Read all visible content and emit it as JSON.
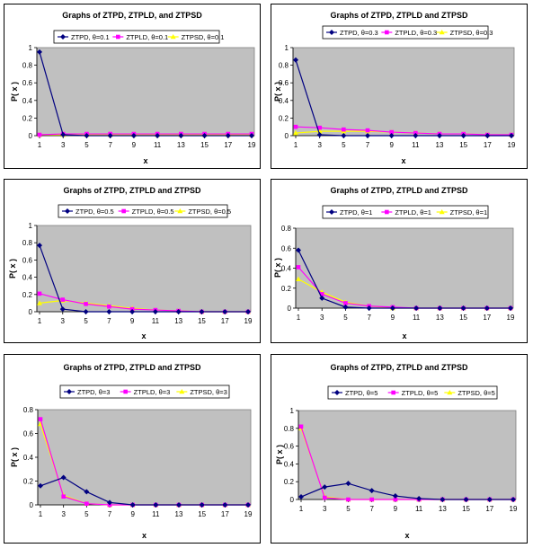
{
  "chart_data": [
    {
      "type": "line",
      "title": "Graphs of ZTPD, ZTPLD, and ZTPSD",
      "xlabel": "x",
      "ylabel": "P( x )",
      "categories": [
        "1",
        "3",
        "5",
        "7",
        "9",
        "11",
        "13",
        "15",
        "17",
        "19"
      ],
      "ylim": [
        0,
        1
      ],
      "yticks": [
        "0",
        "0.2",
        "0.4",
        "0.6",
        "0.8",
        "1"
      ],
      "legend": [
        "ZTPD, θ=0.1",
        "ZTPLD, θ=0.1",
        "ZTPSD, θ=0.1"
      ],
      "series": [
        {
          "name": "ZTPD, θ=0.1",
          "values": [
            0.95,
            0.01,
            0.0,
            0.0,
            0.0,
            0.0,
            0.0,
            0.0,
            0.0,
            0.0
          ]
        },
        {
          "name": "ZTPLD, θ=0.1",
          "values": [
            0.01,
            0.02,
            0.02,
            0.02,
            0.02,
            0.02,
            0.02,
            0.02,
            0.02,
            0.02
          ]
        },
        {
          "name": "ZTPSD, θ=0.1",
          "values": [
            0.01,
            0.01,
            0.01,
            0.01,
            0.01,
            0.01,
            0.01,
            0.01,
            0.01,
            0.01
          ]
        }
      ]
    },
    {
      "type": "line",
      "title": "Graphs of ZTPD, ZTPLD and ZTPSD",
      "xlabel": "x",
      "ylabel": "P( x )",
      "categories": [
        "1",
        "3",
        "5",
        "7",
        "9",
        "11",
        "13",
        "15",
        "17",
        "19"
      ],
      "ylim": [
        0,
        1
      ],
      "yticks": [
        "0",
        "0.2",
        "0.4",
        "0.6",
        "0.8",
        "1"
      ],
      "legend": [
        "ZTPD, θ=0.3",
        "ZTPLD, θ=0.3",
        "ZTPSD, θ=0.3"
      ],
      "series": [
        {
          "name": "ZTPD, θ=0.3",
          "values": [
            0.86,
            0.01,
            0.0,
            0.0,
            0.0,
            0.0,
            0.0,
            0.0,
            0.0,
            0.0
          ]
        },
        {
          "name": "ZTPLD, θ=0.3",
          "values": [
            0.1,
            0.09,
            0.07,
            0.06,
            0.04,
            0.03,
            0.02,
            0.02,
            0.01,
            0.01
          ]
        },
        {
          "name": "ZTPSD, θ=0.3",
          "values": [
            0.03,
            0.05,
            0.05,
            0.05,
            0.04,
            0.03,
            0.02,
            0.02,
            0.01,
            0.01
          ]
        }
      ]
    },
    {
      "type": "line",
      "title": "Graphs of ZTPD, ZTPLD and ZTPSD",
      "xlabel": "x",
      "ylabel": "P( x )",
      "categories": [
        "1",
        "3",
        "5",
        "7",
        "9",
        "11",
        "13",
        "15",
        "17",
        "19"
      ],
      "ylim": [
        0,
        1
      ],
      "yticks": [
        "0",
        "0.2",
        "0.4",
        "0.6",
        "0.8",
        "1"
      ],
      "legend": [
        "ZTPD, θ=0.5",
        "ZTPLD, θ=0.5",
        "ZTPSD, θ=0.5"
      ],
      "series": [
        {
          "name": "ZTPD, θ=0.5",
          "values": [
            0.77,
            0.03,
            0.0,
            0.0,
            0.0,
            0.0,
            0.0,
            0.0,
            0.0,
            0.0
          ]
        },
        {
          "name": "ZTPLD, θ=0.5",
          "values": [
            0.21,
            0.14,
            0.09,
            0.06,
            0.03,
            0.02,
            0.01,
            0.0,
            0.0,
            0.0
          ]
        },
        {
          "name": "ZTPSD, θ=0.5",
          "values": [
            0.1,
            0.13,
            0.1,
            0.07,
            0.04,
            0.02,
            0.01,
            0.0,
            0.0,
            0.0
          ]
        }
      ]
    },
    {
      "type": "line",
      "title": "Graphs of ZTPD, ZTPLD and ZTPSD",
      "xlabel": "x",
      "ylabel": "P( x )",
      "categories": [
        "1",
        "3",
        "5",
        "7",
        "9",
        "11",
        "13",
        "15",
        "17",
        "19"
      ],
      "ylim": [
        0,
        0.8
      ],
      "yticks": [
        "0",
        "0.2",
        "0.4",
        "0.6",
        "0.8"
      ],
      "legend": [
        "ZTPD, θ=1",
        "ZTPLD, θ=1",
        "ZTPSD, θ=1"
      ],
      "series": [
        {
          "name": "ZTPD, θ=1",
          "values": [
            0.58,
            0.1,
            0.01,
            0.0,
            0.0,
            0.0,
            0.0,
            0.0,
            0.0,
            0.0
          ]
        },
        {
          "name": "ZTPLD, θ=1",
          "values": [
            0.41,
            0.14,
            0.05,
            0.02,
            0.01,
            0.0,
            0.0,
            0.0,
            0.0,
            0.0
          ]
        },
        {
          "name": "ZTPSD, θ=1",
          "values": [
            0.29,
            0.16,
            0.06,
            0.02,
            0.0,
            0.0,
            0.0,
            0.0,
            0.0,
            0.0
          ]
        }
      ]
    },
    {
      "type": "line",
      "title": "Graphs of ZTPD, ZTPLD and ZTPSD",
      "xlabel": "x",
      "ylabel": "P( x )",
      "categories": [
        "1",
        "3",
        "5",
        "7",
        "9",
        "11",
        "13",
        "15",
        "17",
        "19"
      ],
      "ylim": [
        0,
        0.8
      ],
      "yticks": [
        "0",
        "0.2",
        "0.4",
        "0.6",
        "0.8"
      ],
      "legend": [
        "ZTPD, θ=3",
        "ZTPLD, θ=3",
        "ZTPSD, θ=3"
      ],
      "series": [
        {
          "name": "ZTPD, θ=3",
          "values": [
            0.16,
            0.23,
            0.11,
            0.02,
            0.0,
            0.0,
            0.0,
            0.0,
            0.0,
            0.0
          ]
        },
        {
          "name": "ZTPLD, θ=3",
          "values": [
            0.72,
            0.07,
            0.01,
            0.0,
            0.0,
            0.0,
            0.0,
            0.0,
            0.0,
            0.0
          ]
        },
        {
          "name": "ZTPSD, θ=3",
          "values": [
            0.68,
            0.08,
            0.01,
            0.0,
            0.0,
            0.0,
            0.0,
            0.0,
            0.0,
            0.0
          ]
        }
      ]
    },
    {
      "type": "line",
      "title": "Graphs of ZTPD, ZTPLD and ZTPSD",
      "xlabel": "x",
      "ylabel": "P( x )",
      "categories": [
        "1",
        "3",
        "5",
        "7",
        "9",
        "11",
        "13",
        "15",
        "17",
        "19"
      ],
      "ylim": [
        0,
        1
      ],
      "yticks": [
        "0",
        "0.2",
        "0.4",
        "0.6",
        "0.8",
        "1"
      ],
      "legend": [
        "ZTPD, θ=5",
        "ZTPLD, θ=5",
        "ZTPSD, θ=5"
      ],
      "series": [
        {
          "name": "ZTPD, θ=5",
          "values": [
            0.03,
            0.14,
            0.18,
            0.1,
            0.04,
            0.01,
            0.0,
            0.0,
            0.0,
            0.0
          ]
        },
        {
          "name": "ZTPLD, θ=5",
          "values": [
            0.82,
            0.02,
            0.0,
            0.0,
            0.0,
            0.0,
            0.0,
            0.0,
            0.0,
            0.0
          ]
        },
        {
          "name": "ZTPSD, θ=5",
          "values": [
            0.8,
            0.03,
            0.0,
            0.0,
            0.0,
            0.0,
            0.0,
            0.0,
            0.0,
            0.0
          ]
        }
      ]
    }
  ],
  "colors": {
    "series": [
      "#000080",
      "#ff00ff",
      "#ffff00"
    ],
    "plot_area": "#c0c0c0"
  }
}
